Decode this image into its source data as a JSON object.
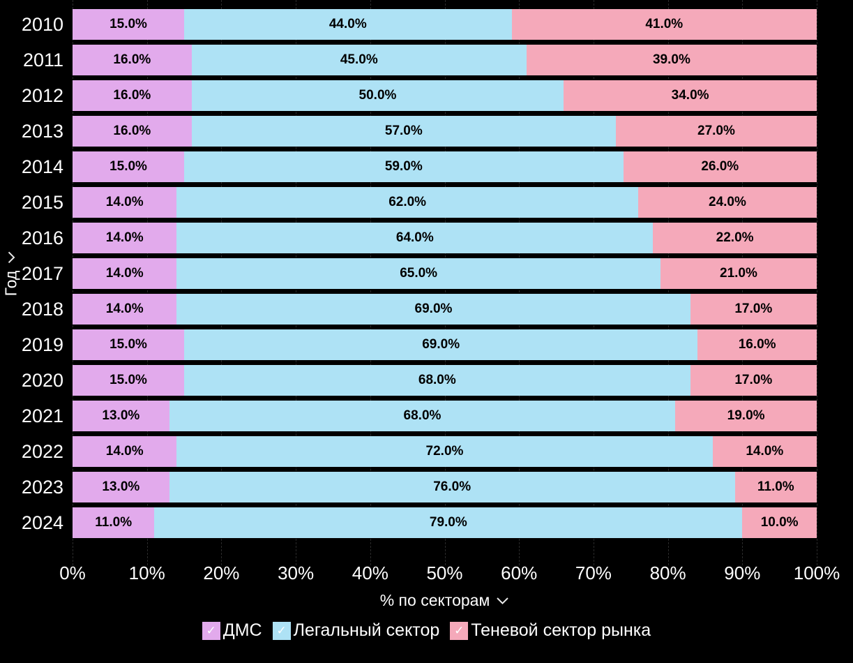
{
  "chart_data": {
    "type": "bar",
    "orientation": "horizontal",
    "stacked": true,
    "title": "",
    "xlabel": "% по секторам",
    "ylabel": "Год",
    "xlim": [
      0,
      100
    ],
    "x_ticks": [
      "0%",
      "10%",
      "20%",
      "30%",
      "40%",
      "50%",
      "60%",
      "70%",
      "80%",
      "90%",
      "100%"
    ],
    "grid": "vertical-dashed",
    "legend_position": "bottom",
    "value_label_format": "one-decimal-percent",
    "categories": [
      "2010",
      "2011",
      "2012",
      "2013",
      "2014",
      "2015",
      "2016",
      "2017",
      "2018",
      "2019",
      "2020",
      "2021",
      "2022",
      "2023",
      "2024"
    ],
    "series": [
      {
        "name": "ДМС",
        "color": "#e2aaec",
        "values": [
          15,
          16,
          16,
          16,
          15,
          14,
          14,
          14,
          14,
          15,
          15,
          13,
          14,
          13,
          11
        ]
      },
      {
        "name": "Легальный сектор",
        "color": "#aee2f5",
        "values": [
          44,
          45,
          50,
          57,
          59,
          62,
          64,
          65,
          69,
          69,
          68,
          68,
          72,
          76,
          79
        ]
      },
      {
        "name": "Теневой сектор рынка",
        "color": "#f5a9ba",
        "values": [
          41,
          39,
          34,
          27,
          26,
          24,
          22,
          21,
          17,
          16,
          17,
          19,
          14,
          11,
          10
        ]
      }
    ]
  },
  "legend": {
    "check_glyph": "✓"
  },
  "colors": {
    "background": "#000000",
    "axis_text": "#ffffff",
    "bar_label": "#000000",
    "gridline": "#2b2b2b"
  }
}
